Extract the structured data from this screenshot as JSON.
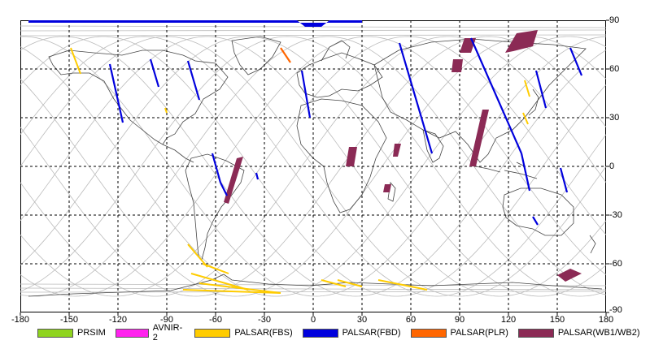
{
  "map": {
    "x_ticks": [
      "-180",
      "-150",
      "-120",
      "-90",
      "-60",
      "-30",
      "0",
      "30",
      "60",
      "90",
      "120",
      "150",
      "180"
    ],
    "y_ticks": [
      "90",
      "60",
      "30",
      "0",
      "-30",
      "-60",
      "-90"
    ],
    "legend": [
      {
        "label": "PRSIM",
        "color": "#8fd41f"
      },
      {
        "label": "AVNIR-2",
        "color": "#ff22ee"
      },
      {
        "label": "PALSAR(FBS)",
        "color": "#ffcc00"
      },
      {
        "label": "PALSAR(FBD)",
        "color": "#0000dd"
      },
      {
        "label": "PALSAR(PLR)",
        "color": "#ff6600"
      },
      {
        "label": "PALSAR(WB1/WB2)",
        "color": "#8b2a55"
      }
    ],
    "colors": {
      "grid": "#000000",
      "orbit": "#bbbbbb",
      "coast": "#444444",
      "fbs": "#ffcc00",
      "fbd": "#0000dd",
      "plr": "#ff6600",
      "wb": "#8b2a55"
    }
  }
}
